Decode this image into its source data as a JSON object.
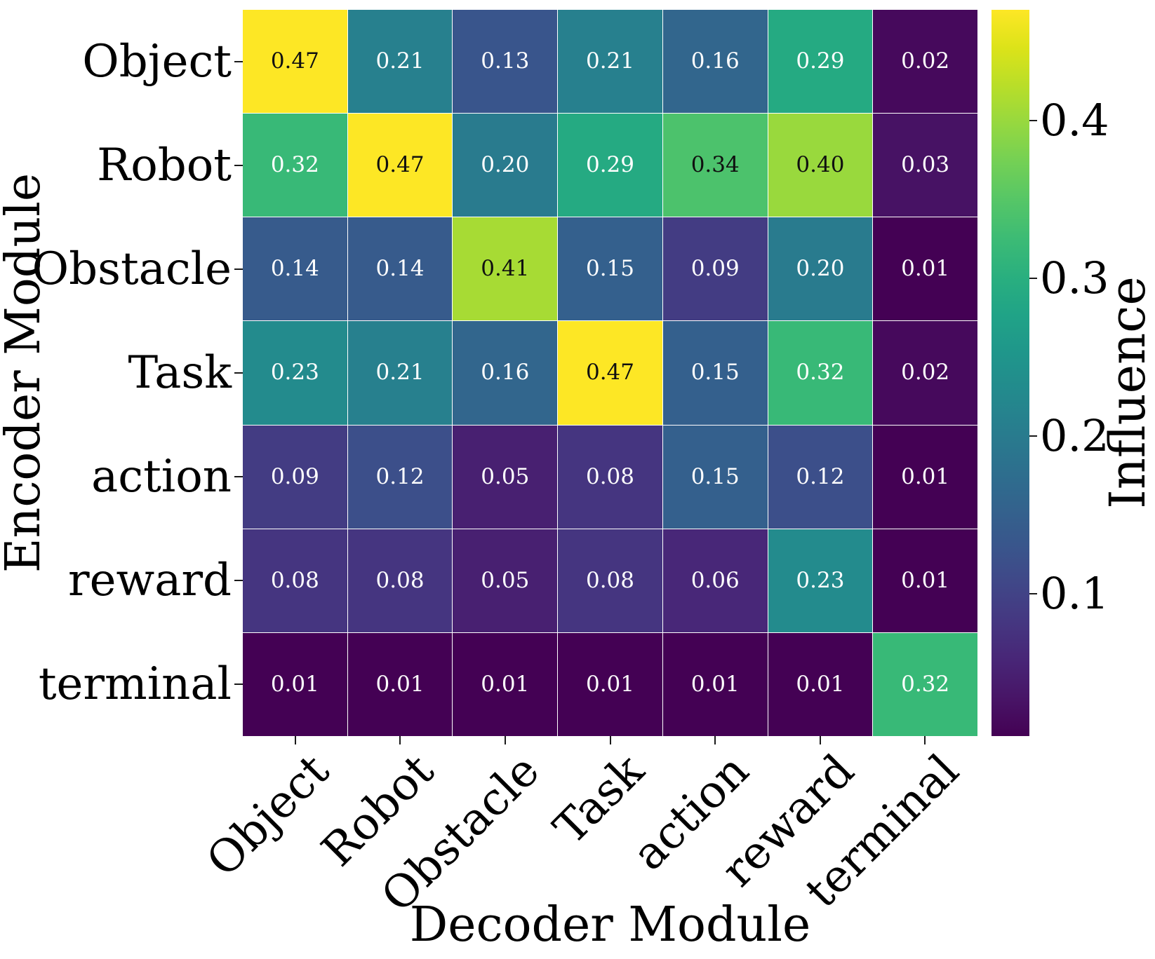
{
  "chart_data": {
    "type": "heatmap",
    "xlabel": "Decoder Module",
    "ylabel": "Encoder Module",
    "colorbar_label": "Influence",
    "colormap": "viridis",
    "x_categories": [
      "Object",
      "Robot",
      "Obstacle",
      "Task",
      "action",
      "reward",
      "terminal"
    ],
    "y_categories": [
      "Object",
      "Robot",
      "Obstacle",
      "Task",
      "action",
      "reward",
      "terminal"
    ],
    "values": [
      [
        0.47,
        0.21,
        0.13,
        0.21,
        0.16,
        0.29,
        0.02
      ],
      [
        0.32,
        0.47,
        0.2,
        0.29,
        0.34,
        0.4,
        0.03
      ],
      [
        0.14,
        0.14,
        0.41,
        0.15,
        0.09,
        0.2,
        0.01
      ],
      [
        0.23,
        0.21,
        0.16,
        0.47,
        0.15,
        0.32,
        0.02
      ],
      [
        0.09,
        0.12,
        0.05,
        0.08,
        0.15,
        0.12,
        0.01
      ],
      [
        0.08,
        0.08,
        0.05,
        0.08,
        0.06,
        0.23,
        0.01
      ],
      [
        0.01,
        0.01,
        0.01,
        0.01,
        0.01,
        0.01,
        0.32
      ]
    ],
    "vmin": 0.01,
    "vmax": 0.47,
    "colorbar_ticks": [
      0.4,
      0.3,
      0.2,
      0.1
    ],
    "annotation_decimals": 2,
    "grid": false,
    "legend_position": "right-colorbar"
  }
}
